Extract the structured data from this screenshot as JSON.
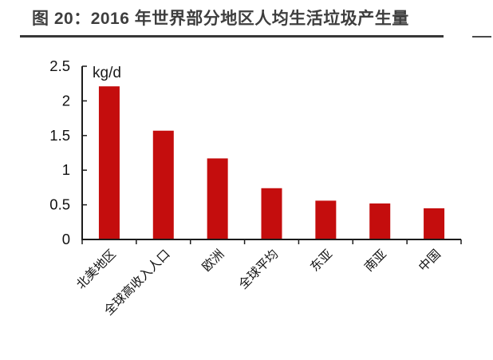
{
  "header": {
    "title": "图 20：2016 年世界部分地区人均生活垃圾产生量"
  },
  "chart_data": {
    "type": "bar",
    "title": "2016 年世界部分地区人均生活垃圾产生量",
    "unit_label": "kg/d",
    "categories": [
      "北美地区",
      "全球高收入人口",
      "欧洲",
      "全球平均",
      "东亚",
      "南亚",
      "中国"
    ],
    "values": [
      2.21,
      1.57,
      1.17,
      0.74,
      0.56,
      0.52,
      0.45
    ],
    "xlabel": "",
    "ylabel": "kg/d",
    "ylim": [
      0,
      2.5
    ],
    "yticks": [
      0,
      0.5,
      1,
      1.5,
      2,
      2.5
    ],
    "grid": false,
    "legend": false,
    "colors": {
      "bar": "#C40D0D",
      "axis": "#1c1c1c",
      "tick_label": "#111111",
      "unit_label": "#1a1a1a",
      "title_text": "#3e3e3e",
      "title_rule": "#373737"
    }
  }
}
